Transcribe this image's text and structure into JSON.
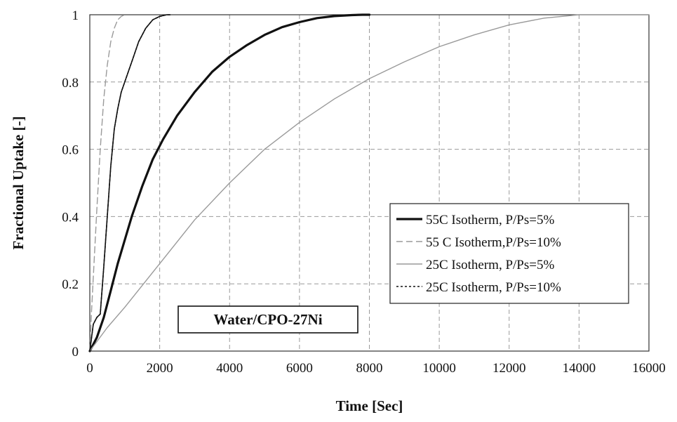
{
  "chart_data": {
    "type": "line",
    "title": "",
    "xlabel": "Time [Sec]",
    "ylabel": "Fractional Uptake [-]",
    "xlim": [
      0,
      16000
    ],
    "ylim": [
      0,
      1
    ],
    "xticks": [
      "0",
      "2000",
      "4000",
      "6000",
      "8000",
      "10000",
      "12000",
      "14000",
      "16000"
    ],
    "yticks": [
      "0",
      "0.2",
      "0.4",
      "0.6",
      "0.8",
      "1"
    ],
    "grid": true,
    "legend_position": "right-middle",
    "annotation": "Water/CPO-27Ni",
    "series": [
      {
        "name": "55C Isotherm, P/Ps=5%",
        "style": "solid",
        "color": "#111111",
        "width": 3.2,
        "x": [
          0,
          200,
          400,
          600,
          800,
          1000,
          1200,
          1500,
          1800,
          2100,
          2500,
          3000,
          3500,
          4000,
          4500,
          5000,
          5500,
          6000,
          6500,
          7000,
          7500,
          7800,
          8000
        ],
        "y": [
          0,
          0.04,
          0.1,
          0.18,
          0.26,
          0.33,
          0.4,
          0.49,
          0.57,
          0.63,
          0.7,
          0.77,
          0.83,
          0.875,
          0.91,
          0.94,
          0.963,
          0.978,
          0.99,
          0.996,
          0.999,
          1.0,
          1.0
        ]
      },
      {
        "name": "55 C Isotherm,P/Ps=10%",
        "style": "dashed",
        "color": "#9a9a9a",
        "width": 1.4,
        "x": [
          0,
          50,
          100,
          200,
          300,
          400,
          500,
          600,
          700,
          800,
          900,
          1000
        ],
        "y": [
          0,
          0.12,
          0.22,
          0.42,
          0.6,
          0.75,
          0.85,
          0.92,
          0.96,
          0.985,
          0.995,
          1.0
        ]
      },
      {
        "name": "25C Isotherm, P/Ps=5%",
        "style": "solid",
        "color": "#9a9a9a",
        "width": 1.4,
        "x": [
          0,
          500,
          1000,
          2000,
          3000,
          4000,
          5000,
          6000,
          7000,
          8000,
          9000,
          10000,
          11000,
          12000,
          13000,
          14000,
          15000,
          16000
        ],
        "y": [
          0,
          0.07,
          0.13,
          0.26,
          0.39,
          0.5,
          0.6,
          0.68,
          0.75,
          0.81,
          0.86,
          0.905,
          0.94,
          0.97,
          0.99,
          1.0,
          1.0,
          1.0
        ]
      },
      {
        "name": "25C Isotherm, P/Ps=10%",
        "style": "dotted",
        "color": "#111111",
        "width": 1.6,
        "x": [
          0,
          100,
          200,
          300,
          400,
          500,
          600,
          700,
          800,
          900,
          1000,
          1100,
          1200,
          1400,
          1600,
          1800,
          2000,
          2200,
          2300
        ],
        "y": [
          0,
          0.08,
          0.1,
          0.11,
          0.25,
          0.4,
          0.55,
          0.66,
          0.72,
          0.77,
          0.8,
          0.83,
          0.86,
          0.92,
          0.96,
          0.985,
          0.995,
          1.0,
          1.0
        ]
      },
      {
        "name": "",
        "style": "solid",
        "color": "#111111",
        "width": 1.6,
        "x": [
          0,
          100,
          200,
          300,
          400,
          500,
          600,
          700,
          800,
          900,
          1000,
          1100,
          1200,
          1400,
          1600,
          1800,
          2000,
          2200,
          2300
        ],
        "y": [
          0,
          0.08,
          0.1,
          0.11,
          0.25,
          0.4,
          0.55,
          0.66,
          0.72,
          0.77,
          0.8,
          0.83,
          0.86,
          0.92,
          0.96,
          0.985,
          0.995,
          1.0,
          1.0
        ]
      }
    ]
  }
}
